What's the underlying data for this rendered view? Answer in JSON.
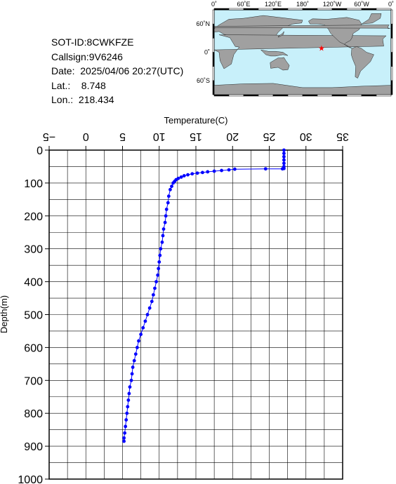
{
  "info": {
    "sot_id": "SOT-ID:8CWKFZE",
    "callsign": "Callsign:9V6246",
    "date": "Date:  2025/04/06 20:27(UTC)",
    "lat": "Lat.:    8.748",
    "lon": "Lon.:  218.434"
  },
  "map": {
    "top_labels": [
      "0˚",
      "60˚E",
      "120˚E",
      "180˚",
      "120˚W",
      "60˚W",
      "0˚"
    ],
    "left_labels": [
      "60˚N",
      "0˚",
      "60˚S"
    ],
    "marker": {
      "lon": 218.434,
      "lat": 8.748,
      "symbol": "★",
      "color": "#ff0000"
    },
    "ocean_color": "#c8f0fa",
    "land_color": "#a0a0a0"
  },
  "chart_data": {
    "type": "line",
    "title": "",
    "xlabel": "Temperature(C)",
    "ylabel": "Depth(m)",
    "xlim": [
      -5,
      35
    ],
    "ylim": [
      0,
      1000
    ],
    "y_inverted": true,
    "x_axis_position": "top",
    "x_ticks": [
      "−5",
      "0",
      "5",
      "10",
      "15",
      "20",
      "25",
      "30",
      "35"
    ],
    "y_ticks": [
      "0",
      "100",
      "200",
      "300",
      "400",
      "500",
      "600",
      "700",
      "800",
      "900",
      "1000"
    ],
    "grid": true,
    "series": [
      {
        "color": "#0000ff",
        "points": [
          [
            27.0,
            0
          ],
          [
            27.0,
            10
          ],
          [
            27.0,
            20
          ],
          [
            27.0,
            30
          ],
          [
            27.0,
            40
          ],
          [
            27.0,
            50
          ],
          [
            27.0,
            56
          ],
          [
            26.8,
            57
          ],
          [
            24.5,
            57
          ],
          [
            20.3,
            58
          ],
          [
            19.5,
            60
          ],
          [
            18.5,
            62
          ],
          [
            17.5,
            64
          ],
          [
            16.6,
            66
          ],
          [
            15.9,
            68
          ],
          [
            15.2,
            70
          ],
          [
            14.5,
            72
          ],
          [
            13.9,
            75
          ],
          [
            13.4,
            78
          ],
          [
            13.0,
            82
          ],
          [
            12.6,
            86
          ],
          [
            12.3,
            90
          ],
          [
            12.1,
            95
          ],
          [
            11.9,
            100
          ],
          [
            11.7,
            110
          ],
          [
            11.5,
            120
          ],
          [
            11.3,
            140
          ],
          [
            11.2,
            160
          ],
          [
            11.0,
            180
          ],
          [
            10.9,
            200
          ],
          [
            10.8,
            220
          ],
          [
            10.6,
            240
          ],
          [
            10.5,
            260
          ],
          [
            10.4,
            280
          ],
          [
            10.2,
            300
          ],
          [
            10.1,
            320
          ],
          [
            10.0,
            340
          ],
          [
            9.9,
            360
          ],
          [
            9.8,
            380
          ],
          [
            9.6,
            400
          ],
          [
            9.4,
            420
          ],
          [
            9.2,
            440
          ],
          [
            9.0,
            460
          ],
          [
            8.7,
            480
          ],
          [
            8.4,
            500
          ],
          [
            8.1,
            520
          ],
          [
            7.8,
            540
          ],
          [
            7.5,
            560
          ],
          [
            7.2,
            580
          ],
          [
            7.0,
            600
          ],
          [
            6.8,
            620
          ],
          [
            6.6,
            640
          ],
          [
            6.4,
            660
          ],
          [
            6.3,
            680
          ],
          [
            6.2,
            700
          ],
          [
            6.0,
            720
          ],
          [
            5.9,
            740
          ],
          [
            5.8,
            760
          ],
          [
            5.7,
            780
          ],
          [
            5.6,
            800
          ],
          [
            5.5,
            820
          ],
          [
            5.4,
            840
          ],
          [
            5.3,
            860
          ],
          [
            5.2,
            875
          ],
          [
            5.2,
            885
          ]
        ]
      }
    ]
  }
}
